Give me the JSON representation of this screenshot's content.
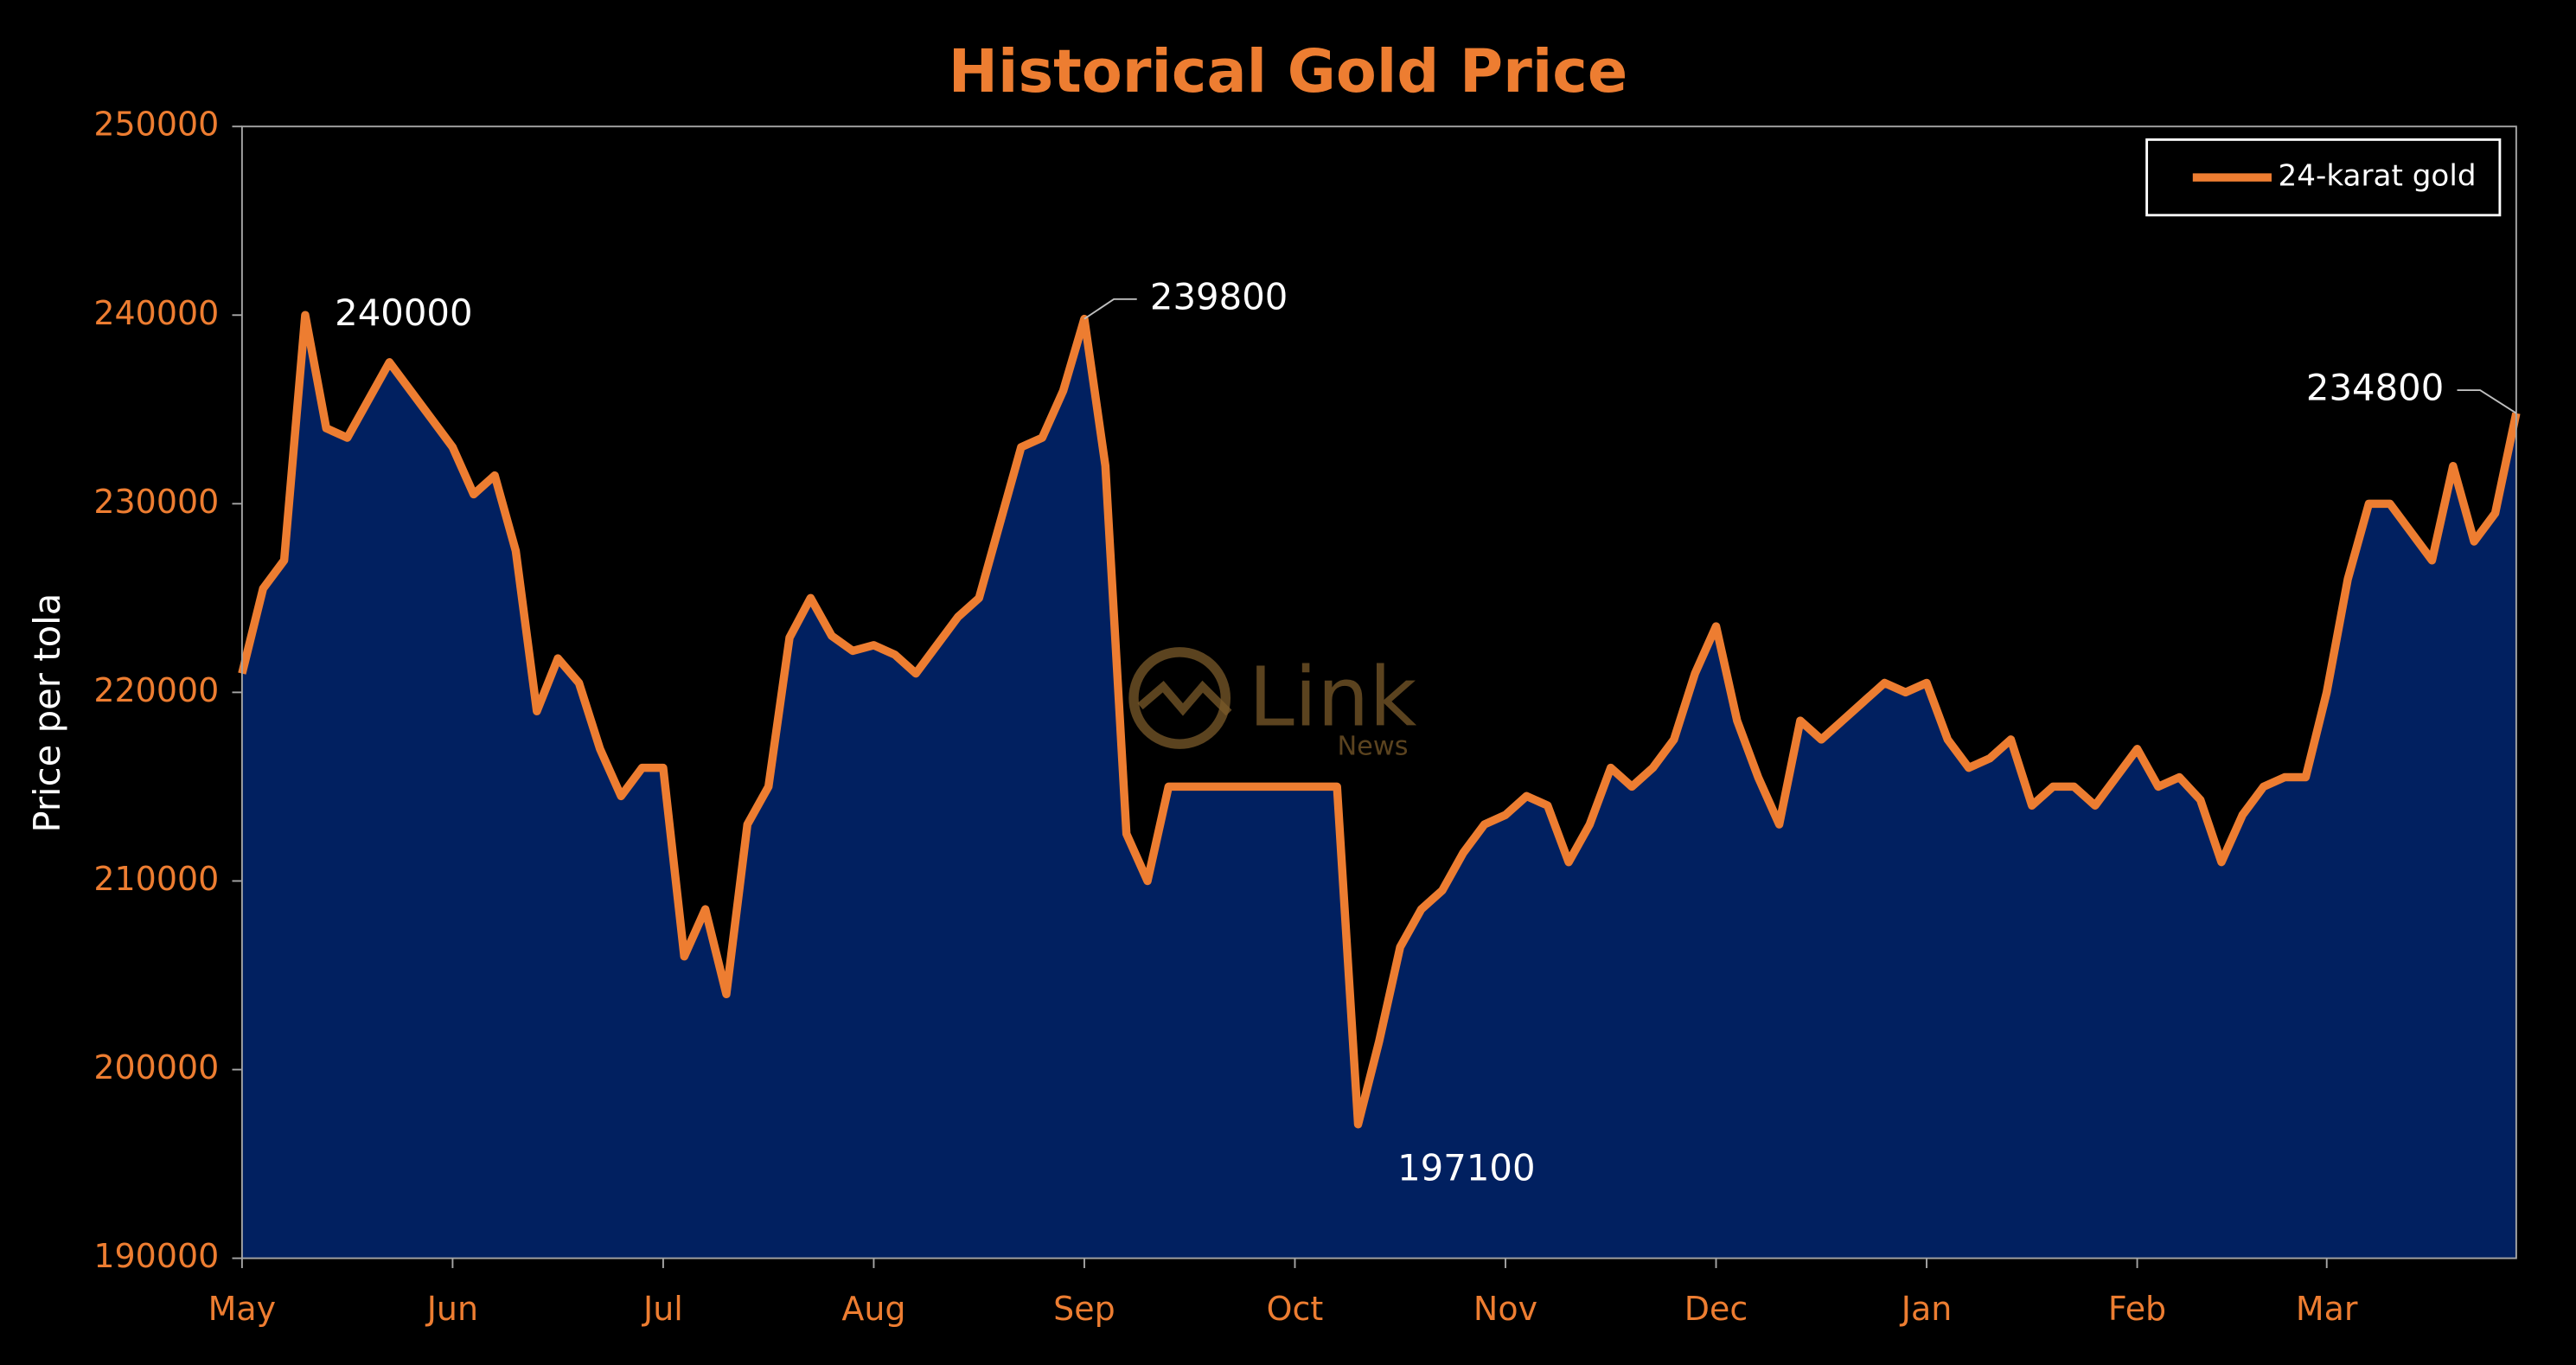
{
  "chart_data": {
    "type": "area",
    "title": "Historical Gold Price",
    "y_label": "Price per tola",
    "categories": [
      "May",
      null,
      null,
      null,
      null,
      null,
      null,
      null,
      null,
      null,
      "Jun",
      null,
      null,
      null,
      null,
      null,
      null,
      null,
      null,
      null,
      "Jul",
      null,
      null,
      null,
      null,
      null,
      null,
      null,
      null,
      null,
      "Aug",
      null,
      null,
      null,
      null,
      null,
      null,
      null,
      null,
      null,
      "Sep",
      null,
      null,
      null,
      null,
      null,
      null,
      null,
      null,
      null,
      "Oct",
      null,
      null,
      null,
      null,
      null,
      null,
      null,
      null,
      null,
      "Nov",
      null,
      null,
      null,
      null,
      null,
      null,
      null,
      null,
      null,
      "Dec",
      null,
      null,
      null,
      null,
      null,
      null,
      null,
      null,
      null,
      "Jan",
      null,
      null,
      null,
      null,
      null,
      null,
      null,
      null,
      null,
      "Feb",
      null,
      null,
      null,
      null,
      null,
      null,
      null,
      null,
      "Mar",
      null,
      null,
      null,
      null,
      null,
      null,
      null,
      null,
      null
    ],
    "series": [
      {
        "name": "24-karat gold",
        "color": "#ed7d31",
        "fill": "#012060",
        "values": [
          221000,
          225500,
          227000,
          240000,
          234000,
          233500,
          235500,
          237500,
          236000,
          234500,
          233000,
          230500,
          231500,
          227500,
          219000,
          221800,
          220500,
          217000,
          214500,
          216000,
          216000,
          206000,
          208500,
          204000,
          213000,
          215000,
          222900,
          225000,
          223000,
          222200,
          222500,
          222000,
          221000,
          222500,
          224000,
          225000,
          229000,
          233000,
          233500,
          236000,
          239800,
          232000,
          212500,
          210000,
          215000,
          215000,
          215000,
          215000,
          215000,
          215000,
          215000,
          215000,
          215000,
          197100,
          201500,
          206500,
          208500,
          209500,
          211500,
          213000,
          213500,
          214500,
          214000,
          211000,
          213000,
          216000,
          215000,
          216000,
          217500,
          221000,
          223500,
          218500,
          215500,
          213000,
          218500,
          217500,
          218500,
          219500,
          220500,
          220000,
          220500,
          217500,
          216000,
          216500,
          217500,
          214000,
          215000,
          215000,
          214000,
          215500,
          217000,
          215000,
          215500,
          214300,
          211000,
          213500,
          215000,
          215500,
          215500,
          220000,
          226000,
          230000,
          230000,
          228500,
          227000,
          232000,
          228000,
          229500,
          234800
        ]
      }
    ],
    "annotations": [
      240000,
      239800,
      197100,
      234800
    ],
    "ylim": [
      190000,
      250000
    ],
    "yticks": [
      190000,
      200000,
      210000,
      220000,
      230000,
      240000,
      250000
    ],
    "legend": "top-right",
    "watermark": {
      "brand": "Link",
      "sub": "News"
    }
  }
}
